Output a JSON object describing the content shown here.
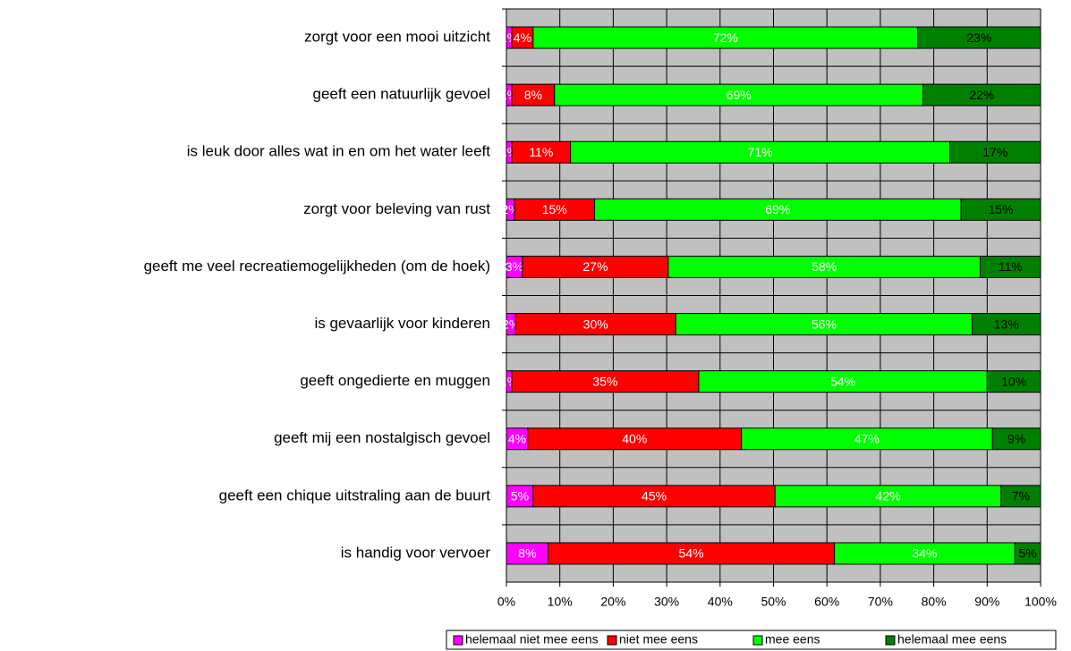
{
  "chart_data": {
    "type": "stacked-barh",
    "categories": [
      "zorgt voor een mooi uitzicht",
      "geeft een natuurlijk gevoel",
      "is leuk door alles wat in en om het water leeft",
      "zorgt voor beleving van rust",
      "geeft me veel recreatiemogelijkheden (om de hoek)",
      "is gevaarlijk voor kinderen",
      "geeft ongedierte en muggen",
      "geeft mij een nostalgisch gevoel",
      "geeft een chique uitstraling aan de buurt",
      "is handig voor vervoer"
    ],
    "series": [
      {
        "name": "helemaal niet mee eens",
        "color": "#ff00ff",
        "label_color": "#ffffff",
        "values": [
          1,
          1,
          1,
          1.5,
          3,
          1.7,
          1,
          4,
          5,
          7.8
        ],
        "value_labels": [
          "1%",
          "1%",
          "1%",
          "2%",
          "3%",
          "2%",
          "1%",
          "4%",
          "5%",
          "8%"
        ]
      },
      {
        "name": "niet mee eens",
        "color": "#ff0000",
        "label_color": "#ffffff",
        "values": [
          4,
          8,
          11,
          15,
          27.3,
          30,
          35,
          40,
          45.3,
          53.6
        ],
        "value_labels": [
          "4%",
          "8%",
          "11%",
          "15%",
          "27%",
          "30%",
          "35%",
          "40%",
          "45%",
          "54%"
        ]
      },
      {
        "name": "mee eens",
        "color": "#00ff00",
        "label_color": "#ffffff",
        "values": [
          72,
          69,
          71,
          68.6,
          58.4,
          55.5,
          54,
          47,
          42.3,
          33.8
        ],
        "value_labels": [
          "72%",
          "69%",
          "71%",
          "69%",
          "58%",
          "56%",
          "54%",
          "47%",
          "42%",
          "34%"
        ]
      },
      {
        "name": "helemaal mee eens",
        "color": "#008000",
        "label_color": "#000000",
        "values": [
          23,
          22,
          17,
          14.9,
          11.3,
          12.8,
          10,
          9,
          7.4,
          4.8
        ],
        "value_labels": [
          "23%",
          "22%",
          "17%",
          "15%",
          "11%",
          "13%",
          "10%",
          "9%",
          "7%",
          "5%"
        ]
      }
    ],
    "xlim": [
      0,
      100
    ],
    "xticks": [
      {
        "value": 0,
        "label": "0%"
      },
      {
        "value": 10,
        "label": "10%"
      },
      {
        "value": 20,
        "label": "20%"
      },
      {
        "value": 30,
        "label": "30%"
      },
      {
        "value": 40,
        "label": "40%"
      },
      {
        "value": 50,
        "label": "50%"
      },
      {
        "value": 60,
        "label": "60%"
      },
      {
        "value": 70,
        "label": "70%"
      },
      {
        "value": 80,
        "label": "80%"
      },
      {
        "value": 90,
        "label": "90%"
      },
      {
        "value": 100,
        "label": "100%"
      }
    ],
    "grid": true,
    "plot_background": "#c0c0c0",
    "legend": "bottom-right"
  }
}
